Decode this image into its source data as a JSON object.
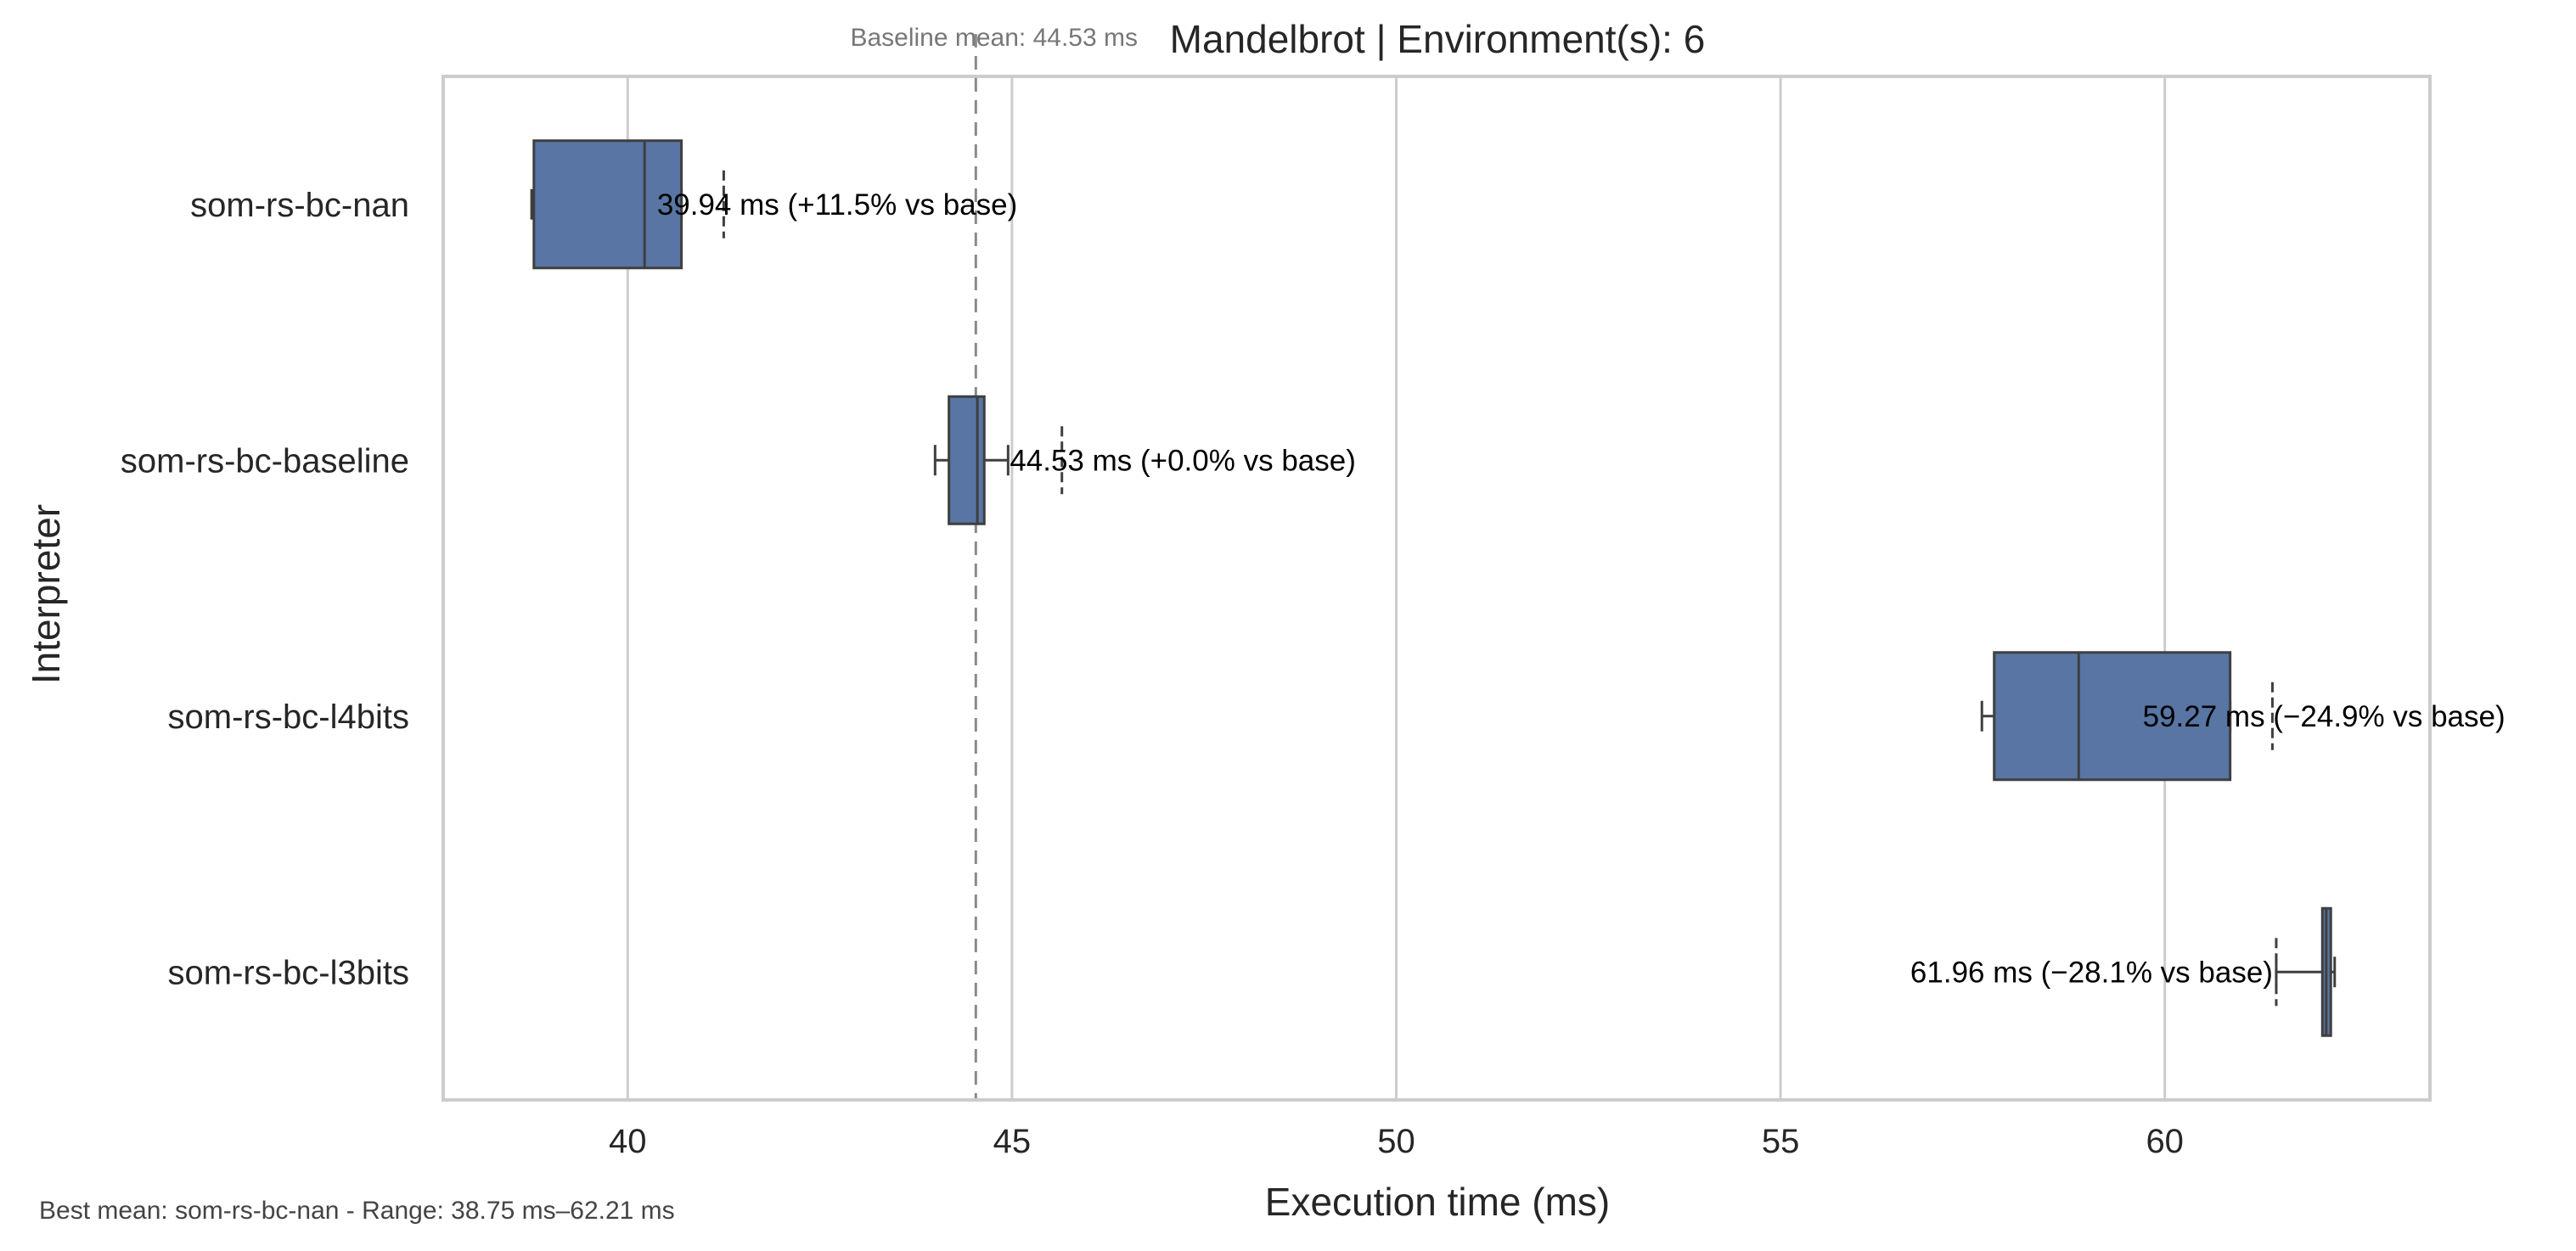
{
  "chart_data": {
    "type": "box",
    "orientation": "horizontal",
    "title": "Mandelbrot | Environment(s): 6",
    "xlabel": "Execution time (ms)",
    "ylabel": "Interpreter",
    "xlim": [
      37.6,
      63.45
    ],
    "xticks": [
      40,
      45,
      50,
      55,
      60
    ],
    "grid": "vertical",
    "baseline": {
      "value": 44.53,
      "label": "Baseline mean: 44.53 ms"
    },
    "footer": "Best mean: som-rs-bc-nan - Range: 38.75 ms–62.21 ms",
    "series": [
      {
        "name": "som-rs-bc-nan",
        "whisker_low": 38.75,
        "q1": 38.78,
        "median": 40.22,
        "q3": 40.7,
        "whisker_high": 40.7,
        "outliers": [
          41.25
        ],
        "mean": 39.94,
        "label": "39.94 ms  (+11.5% vs base)"
      },
      {
        "name": "som-rs-bc-baseline",
        "whisker_low": 44.0,
        "q1": 44.18,
        "median": 44.55,
        "q3": 44.64,
        "whisker_high": 44.95,
        "outliers": [
          45.65
        ],
        "mean": 44.53,
        "label": "44.53 ms  (+0.0% vs base)"
      },
      {
        "name": "som-rs-bc-l4bits",
        "whisker_low": 57.62,
        "q1": 57.78,
        "median": 58.88,
        "q3": 60.85,
        "whisker_high": 60.85,
        "outliers": [
          61.4
        ],
        "mean": 59.27,
        "label": "59.27 ms  (−24.9% vs base)"
      },
      {
        "name": "som-rs-bc-l3bits",
        "whisker_low": 61.45,
        "q1": 62.05,
        "median": 62.1,
        "q3": 62.16,
        "whisker_high": 62.21,
        "outliers": [
          61.45
        ],
        "mean": 61.96,
        "label": "61.96 ms  (−28.1% vs base)"
      }
    ],
    "colors": {
      "box": "#5875a4",
      "edge": "#3f3f3f",
      "grid": "#cccccc",
      "frame": "#cccccc",
      "baseline": "#8a8a8a"
    }
  }
}
